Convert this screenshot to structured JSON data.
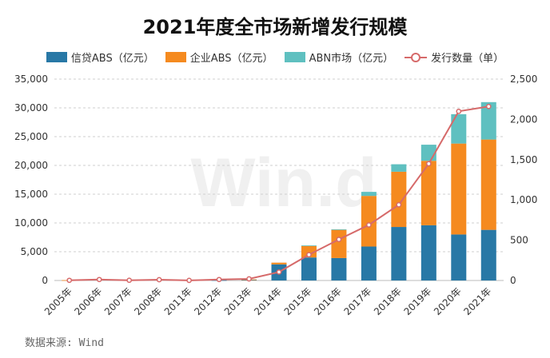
{
  "chart_data": {
    "type": "bar",
    "stacked": true,
    "title": "2021年度全市场新增发行规模",
    "categories": [
      "2005年",
      "2006年",
      "2007年",
      "2008年",
      "2011年",
      "2012年",
      "2013年",
      "2014年",
      "2015年",
      "2016年",
      "2017年",
      "2018年",
      "2019年",
      "2020年",
      "2021年"
    ],
    "series": [
      {
        "name": "信贷ABS（亿元）",
        "axis": "left",
        "color": "#2878a6",
        "values": [
          0,
          0,
          0,
          150,
          0,
          60,
          150,
          2800,
          4000,
          3900,
          5900,
          9300,
          9600,
          8000,
          8800
        ]
      },
      {
        "name": "企业ABS（亿元）",
        "axis": "left",
        "color": "#f58a1f",
        "values": [
          60,
          0,
          0,
          0,
          0,
          0,
          30,
          300,
          2000,
          4900,
          8800,
          9600,
          11200,
          15800,
          15700
        ]
      },
      {
        "name": "ABN市场（亿元）",
        "axis": "left",
        "color": "#5fc0c0",
        "values": [
          0,
          0,
          0,
          0,
          0,
          0,
          0,
          0,
          100,
          100,
          700,
          1300,
          2800,
          5100,
          6500
        ]
      }
    ],
    "line_series": {
      "name": "发行数量（单）",
      "axis": "right",
      "color": "#d66a6a",
      "values": [
        2,
        12,
        3,
        10,
        1,
        12,
        20,
        105,
        320,
        510,
        690,
        940,
        1450,
        2100,
        2160
      ]
    },
    "ylim_left": [
      0,
      35000
    ],
    "yticks_left": [
      "0",
      "5,000",
      "10,000",
      "15,000",
      "20,000",
      "25,000",
      "30,000",
      "35,000"
    ],
    "ylim_right": [
      0,
      2500
    ],
    "yticks_right": [
      "0",
      "500",
      "1,000",
      "1,500",
      "2,000",
      "2,500"
    ],
    "grid": true,
    "legend_position": "top",
    "watermark": "Win.d",
    "source": "数据来源: Wind"
  }
}
